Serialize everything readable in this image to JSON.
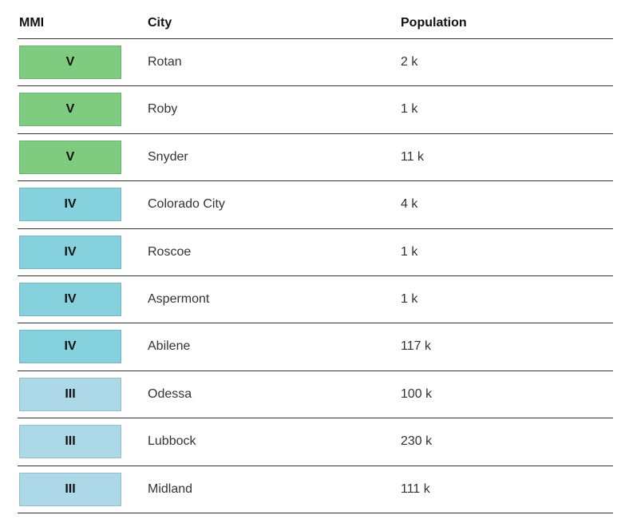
{
  "table": {
    "header": [
      "MMI",
      "City",
      "Population"
    ],
    "rows": [
      [
        "V",
        "Rotan",
        "2 k"
      ],
      [
        "V",
        "Roby",
        "1 k"
      ],
      [
        "V",
        "Snyder",
        "11 k"
      ],
      [
        "IV",
        "Colorado City",
        "4 k"
      ],
      [
        "IV",
        "Roscoe",
        "1 k"
      ],
      [
        "IV",
        "Aspermont",
        "1 k"
      ],
      [
        "IV",
        "Abilene",
        "117 k"
      ],
      [
        "III",
        "Odessa",
        "100 k"
      ],
      [
        "III",
        "Lubbock",
        "230 k"
      ],
      [
        "III",
        "Midland",
        "111 k"
      ]
    ],
    "mmi_colors": {
      "V": "#7fcc80",
      "IV": "#85d1dd",
      "III": "#acd8e8"
    }
  }
}
